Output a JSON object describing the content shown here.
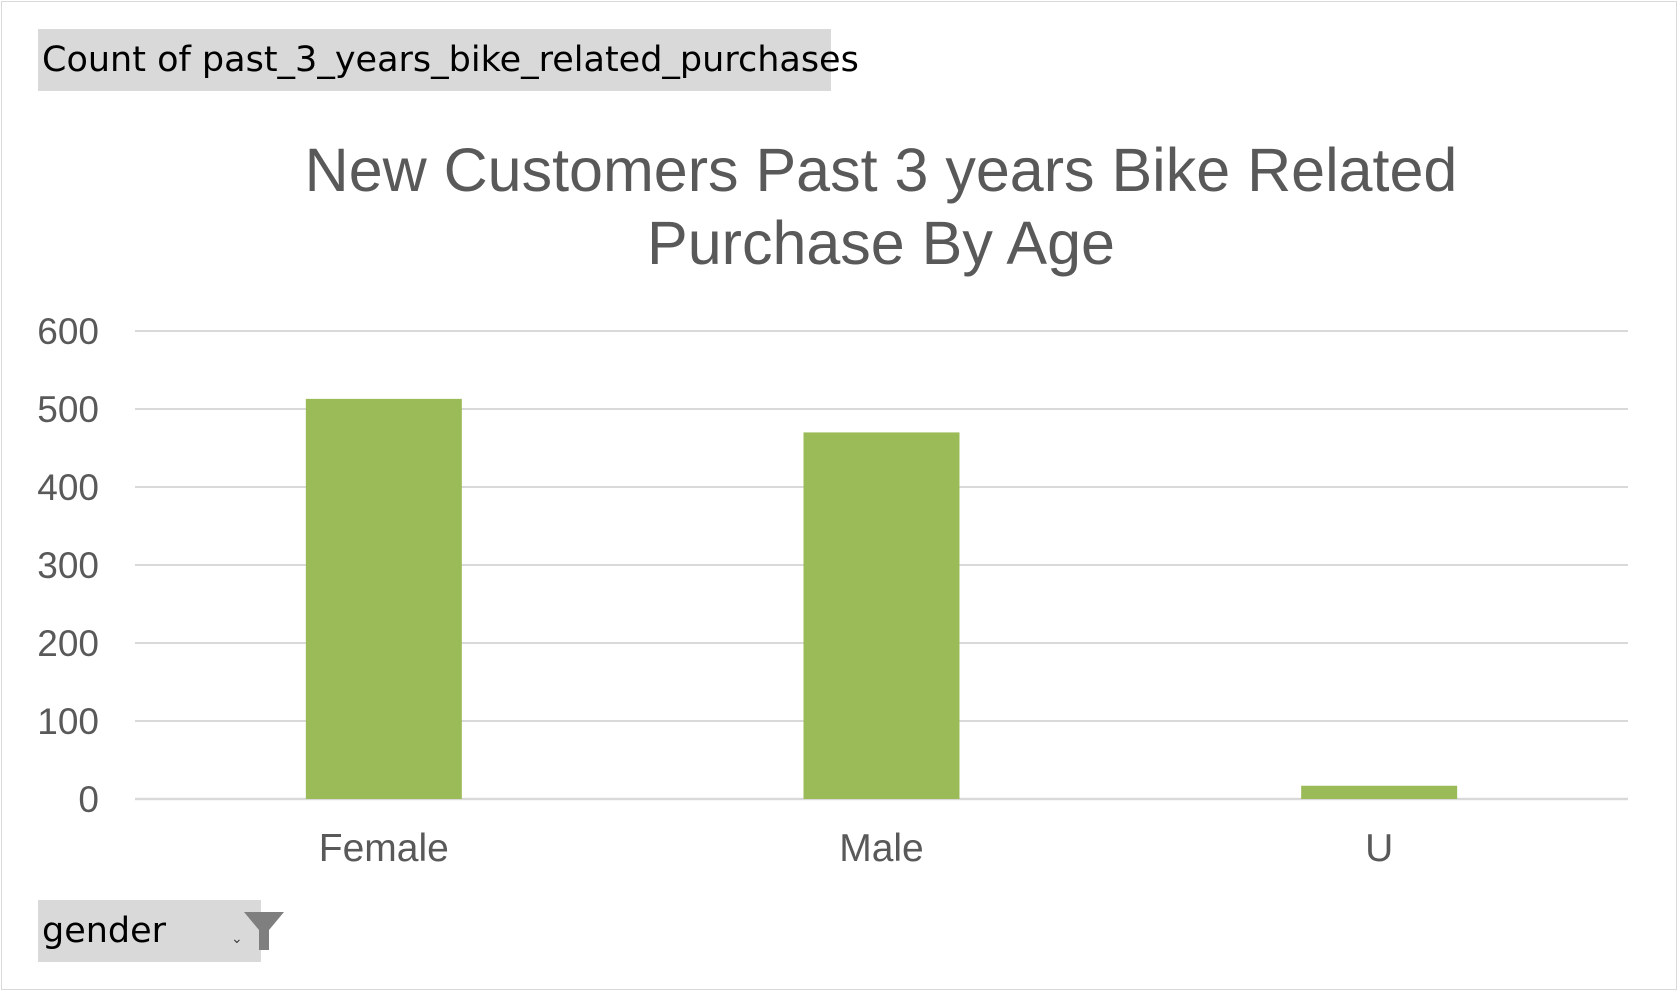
{
  "pivot": {
    "value_field_label": "Count of past_3_years_bike_related_purchases",
    "axis_field_label": "gender",
    "axis_field_dropdown_icon": "chevron-down-icon",
    "axis_field_filter_icon": "filter-icon"
  },
  "colors": {
    "bar": "#9bbb59",
    "gridline": "#d9d9d9",
    "text": "#595959",
    "field_button_bg": "#d9d9d9",
    "filter_icon": "#7f7f7f"
  },
  "chart_data": {
    "type": "bar",
    "title_lines": [
      "New Customers Past 3 years Bike Related",
      "Purchase By Age"
    ],
    "categories": [
      "Female",
      "Male",
      "U"
    ],
    "values": [
      513,
      470,
      17
    ],
    "ylim": [
      0,
      600
    ],
    "yticks": [
      0,
      100,
      200,
      300,
      400,
      500,
      600
    ],
    "grid": true,
    "legend": "none"
  }
}
